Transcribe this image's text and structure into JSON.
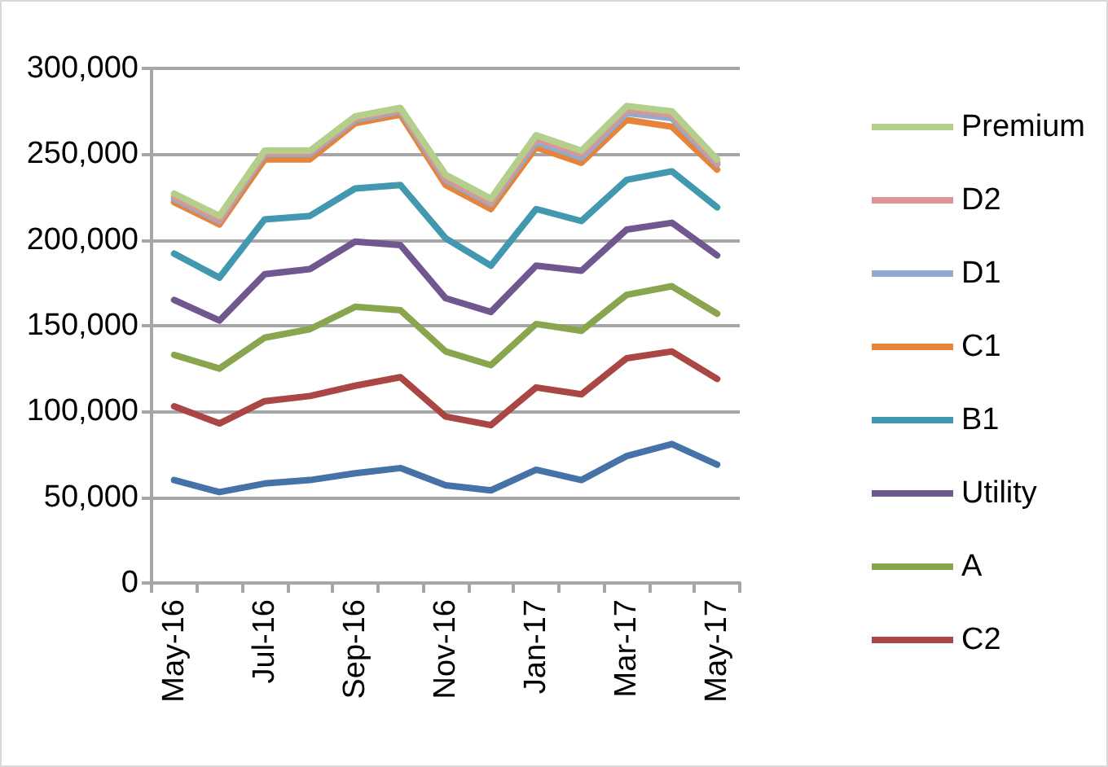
{
  "chart_data": {
    "type": "line",
    "categories": [
      "May-16",
      null,
      "Jul-16",
      null,
      "Sep-16",
      null,
      "Nov-16",
      null,
      "Jan-17",
      null,
      "Mar-17",
      null,
      "May-17"
    ],
    "series": [
      {
        "name": "Premium",
        "color": "#b3cf8b",
        "values": [
          227000,
          214000,
          252000,
          252000,
          272000,
          277000,
          238000,
          224000,
          261000,
          252000,
          278000,
          275000,
          247000
        ]
      },
      {
        "name": "D2",
        "color": "#d99694",
        "values": [
          225000,
          212000,
          251000,
          251000,
          271000,
          276000,
          236000,
          222000,
          259000,
          250000,
          276000,
          273000,
          245000
        ]
      },
      {
        "name": "D1",
        "color": "#8eabd2",
        "values": [
          224000,
          211000,
          250000,
          250000,
          270000,
          275000,
          235000,
          221000,
          257000,
          248000,
          274000,
          271000,
          244000
        ]
      },
      {
        "name": "C1",
        "color": "#e5843a",
        "values": [
          222000,
          209000,
          247000,
          247000,
          268000,
          273000,
          232000,
          218000,
          254000,
          245000,
          270000,
          266000,
          241000
        ]
      },
      {
        "name": "B1",
        "color": "#4198af",
        "values": [
          192000,
          178000,
          212000,
          214000,
          230000,
          232000,
          201000,
          185000,
          218000,
          211000,
          235000,
          240000,
          219000
        ]
      },
      {
        "name": "Utility",
        "color": "#71578f",
        "values": [
          165000,
          153000,
          180000,
          183000,
          199000,
          197000,
          166000,
          158000,
          185000,
          182000,
          206000,
          210000,
          191000
        ]
      },
      {
        "name": "A",
        "color": "#89a54e",
        "values": [
          133000,
          125000,
          143000,
          148000,
          161000,
          159000,
          135000,
          127000,
          151000,
          147000,
          168000,
          173000,
          157000
        ]
      },
      {
        "name": "C2",
        "color": "#aa4643",
        "values": [
          103000,
          93000,
          106000,
          109000,
          115000,
          120000,
          97000,
          92000,
          114000,
          110000,
          131000,
          135000,
          119000
        ]
      },
      {
        "color": "#4572a7",
        "values": [
          60000,
          53000,
          58000,
          60000,
          64000,
          67000,
          57000,
          54000,
          66000,
          60000,
          74000,
          81000,
          69000
        ]
      }
    ],
    "ylim": [
      0,
      300000
    ],
    "yticks": [
      0,
      {
        "value": 50000,
        "label": "50,000"
      },
      {
        "value": 100000,
        "label": "100,000"
      },
      {
        "value": 150000,
        "label": "150,000"
      },
      {
        "value": 200000,
        "label": "200,000"
      },
      {
        "value": 250000,
        "label": "250,000"
      },
      {
        "value": 300000,
        "label": "300,000"
      }
    ],
    "grid": "y",
    "legend": "right",
    "marker": "none",
    "line_style": "solid"
  }
}
